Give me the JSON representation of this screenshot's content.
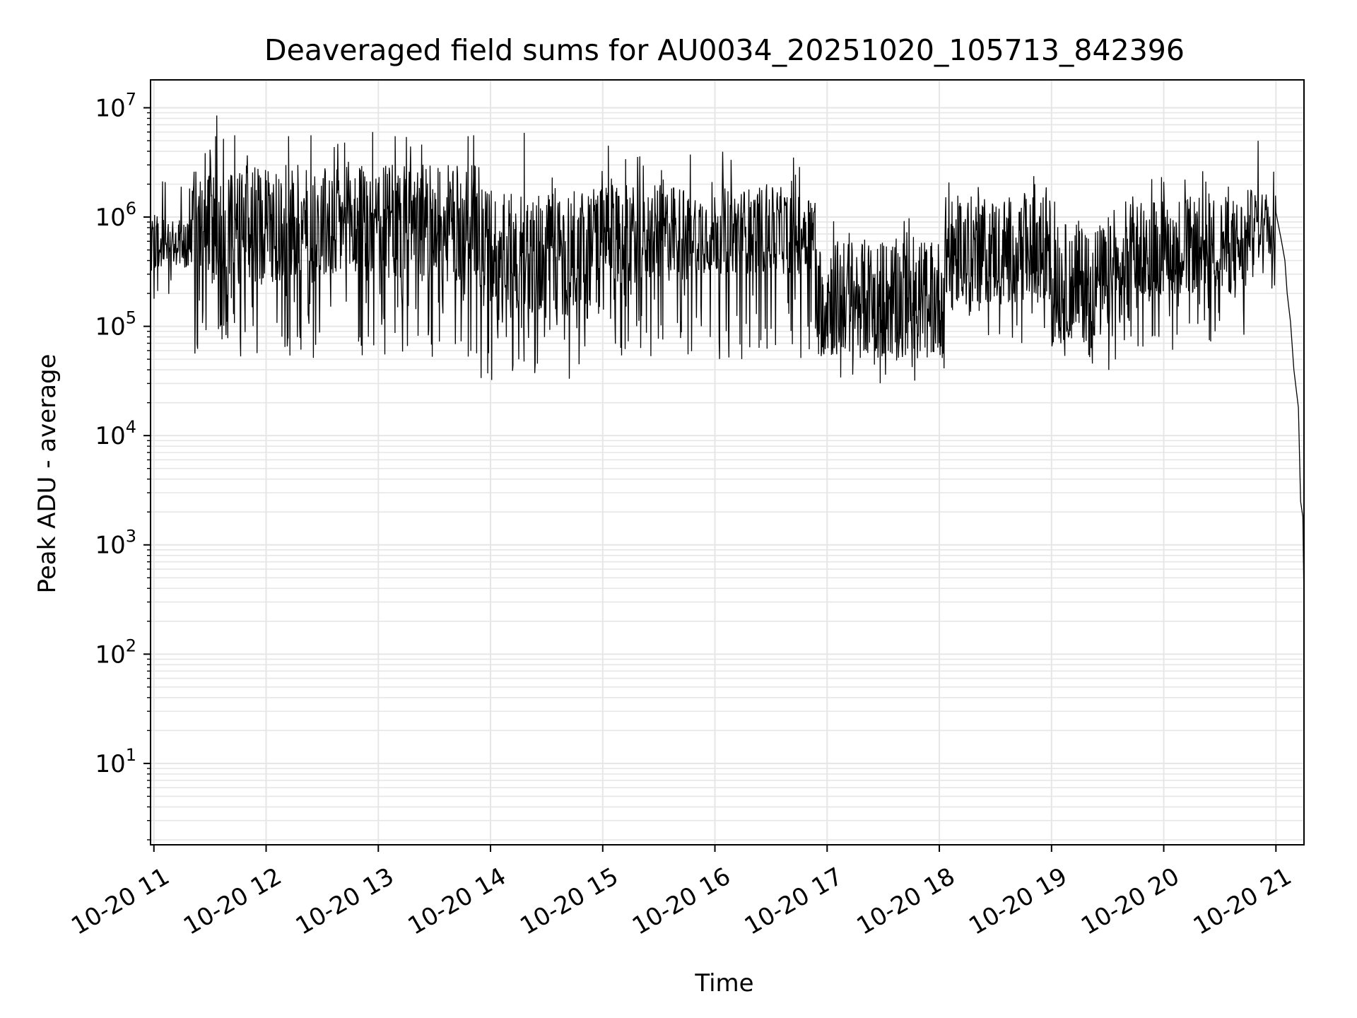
{
  "chart_data": {
    "type": "line",
    "title": "Deaveraged field sums for AU0034_20251020_105713_842396",
    "xlabel": "Time",
    "ylabel": "Peak ADU - average",
    "yscale": "log",
    "ylim": [
      1.8,
      18000000
    ],
    "xlim_hours": [
      10.97,
      21.25
    ],
    "x_ticks": [
      {
        "hour": 11,
        "label": "10-20 11"
      },
      {
        "hour": 12,
        "label": "10-20 12"
      },
      {
        "hour": 13,
        "label": "10-20 13"
      },
      {
        "hour": 14,
        "label": "10-20 14"
      },
      {
        "hour": 15,
        "label": "10-20 15"
      },
      {
        "hour": 16,
        "label": "10-20 16"
      },
      {
        "hour": 17,
        "label": "10-20 17"
      },
      {
        "hour": 18,
        "label": "10-20 18"
      },
      {
        "hour": 19,
        "label": "10-20 19"
      },
      {
        "hour": 20,
        "label": "10-20 20"
      },
      {
        "hour": 21,
        "label": "10-20 21"
      }
    ],
    "y_ticks": [
      {
        "value": 10,
        "base": "10",
        "exp": "1"
      },
      {
        "value": 100,
        "base": "10",
        "exp": "2"
      },
      {
        "value": 1000,
        "base": "10",
        "exp": "3"
      },
      {
        "value": 10000,
        "base": "10",
        "exp": "4"
      },
      {
        "value": 100000,
        "base": "10",
        "exp": "5"
      },
      {
        "value": 1000000,
        "base": "10",
        "exp": "6"
      },
      {
        "value": 10000000,
        "base": "10",
        "exp": "7"
      }
    ],
    "grid": true,
    "line_color": "#000000",
    "grid_color": "#e6e6e6",
    "series": [
      {
        "name": "deaveraged field sums",
        "segments": [
          {
            "start": 10.97,
            "end": 11.35,
            "median": 600000,
            "spread": 0.25,
            "lowdip": 150000
          },
          {
            "start": 11.35,
            "end": 13.9,
            "median": 850000,
            "spread": 0.55,
            "lowdip": 50000
          },
          {
            "start": 13.9,
            "end": 14.9,
            "median": 450000,
            "spread": 0.6,
            "lowdip": 30000
          },
          {
            "start": 14.9,
            "end": 15.8,
            "median": 700000,
            "spread": 0.45,
            "lowdip": 50000
          },
          {
            "start": 15.8,
            "end": 16.9,
            "median": 750000,
            "spread": 0.4,
            "lowdip": 50000
          },
          {
            "start": 16.9,
            "end": 18.05,
            "median": 180000,
            "spread": 0.55,
            "lowdip": 30000
          },
          {
            "start": 18.05,
            "end": 19.0,
            "median": 500000,
            "spread": 0.5,
            "lowdip": 70000
          },
          {
            "start": 19.0,
            "end": 19.7,
            "median": 250000,
            "spread": 0.55,
            "lowdip": 35000
          },
          {
            "start": 19.7,
            "end": 20.75,
            "median": 550000,
            "spread": 0.45,
            "lowdip": 60000
          },
          {
            "start": 20.75,
            "end": 21.0,
            "median": 900000,
            "spread": 0.3,
            "lowdip": 200000
          }
        ],
        "spikes": [
          {
            "hour": 11.56,
            "value": 8500000
          },
          {
            "hour": 11.55,
            "value": 5500000
          },
          {
            "hour": 11.62,
            "value": 5200000
          },
          {
            "hour": 11.72,
            "value": 5600000
          },
          {
            "hour": 12.2,
            "value": 5500000
          },
          {
            "hour": 12.4,
            "value": 5600000
          },
          {
            "hour": 12.7,
            "value": 4800000
          },
          {
            "hour": 12.95,
            "value": 6000000
          },
          {
            "hour": 13.15,
            "value": 5500000
          },
          {
            "hour": 13.25,
            "value": 5400000
          },
          {
            "hour": 13.8,
            "value": 5500000
          },
          {
            "hour": 13.85,
            "value": 5600000
          },
          {
            "hour": 14.3,
            "value": 5900000
          },
          {
            "hour": 14.55,
            "value": 2300000
          },
          {
            "hour": 15.05,
            "value": 4500000
          },
          {
            "hour": 16.7,
            "value": 3500000
          },
          {
            "hour": 18.85,
            "value": 2000000
          },
          {
            "hour": 20.98,
            "value": 2600000
          }
        ],
        "tail": [
          {
            "hour": 21.0,
            "value": 1100000
          },
          {
            "hour": 21.05,
            "value": 600000
          },
          {
            "hour": 21.08,
            "value": 400000
          },
          {
            "hour": 21.1,
            "value": 200000
          },
          {
            "hour": 21.13,
            "value": 110000
          },
          {
            "hour": 21.16,
            "value": 40000
          },
          {
            "hour": 21.2,
            "value": 18000
          },
          {
            "hour": 21.22,
            "value": 2500
          },
          {
            "hour": 21.24,
            "value": 1800
          },
          {
            "hour": 21.25,
            "value": 300
          }
        ]
      }
    ]
  }
}
